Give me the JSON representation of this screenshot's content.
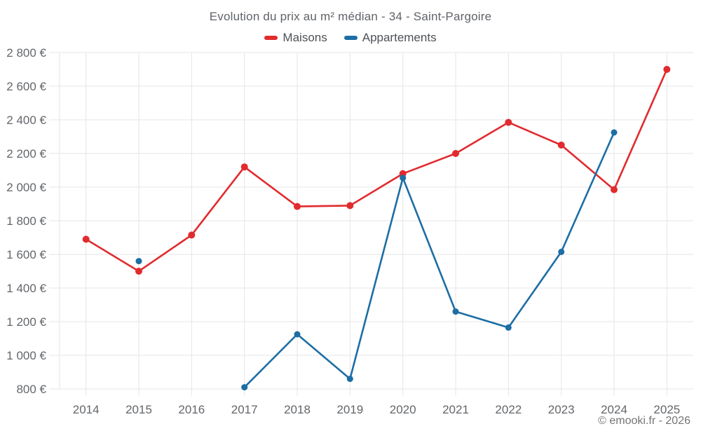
{
  "header": {
    "title": "Evolution du prix au m² médian - 34 - Saint-Pargoire"
  },
  "footer": {
    "credit": "© emooki.fr - 2026"
  },
  "colors": {
    "maisons": "#e12b2e",
    "appartements": "#1c6ea4",
    "gridline": "#e6e6e6",
    "axis_label": "#63666a"
  },
  "chart_data": {
    "type": "line",
    "title": "Evolution du prix au m² médian - 34 - Saint-Pargoire",
    "xlabel": "",
    "ylabel": "",
    "grid": true,
    "legend_position": "top",
    "categories": [
      "2014",
      "2015",
      "2016",
      "2017",
      "2018",
      "2019",
      "2020",
      "2021",
      "2022",
      "2023",
      "2024",
      "2025"
    ],
    "series": [
      {
        "name": "Maisons",
        "color": "#e12b2e",
        "values": [
          1690,
          1500,
          1715,
          2120,
          1885,
          1890,
          2080,
          2200,
          2385,
          2250,
          1985,
          2700
        ]
      },
      {
        "name": "Appartements",
        "color": "#1c6ea4",
        "values": [
          null,
          1560,
          null,
          810,
          1125,
          860,
          2055,
          1260,
          1165,
          1615,
          2325,
          null
        ]
      }
    ],
    "ylim": [
      800,
      2800
    ],
    "ytick_step": 200,
    "ytick_labels": [
      "800 €",
      "1 000 €",
      "1 200 €",
      "1 400 €",
      "1 600 €",
      "1 800 €",
      "2 000 €",
      "2 200 €",
      "2 400 €",
      "2 600 €",
      "2 800 €"
    ],
    "currency_suffix": " €"
  }
}
